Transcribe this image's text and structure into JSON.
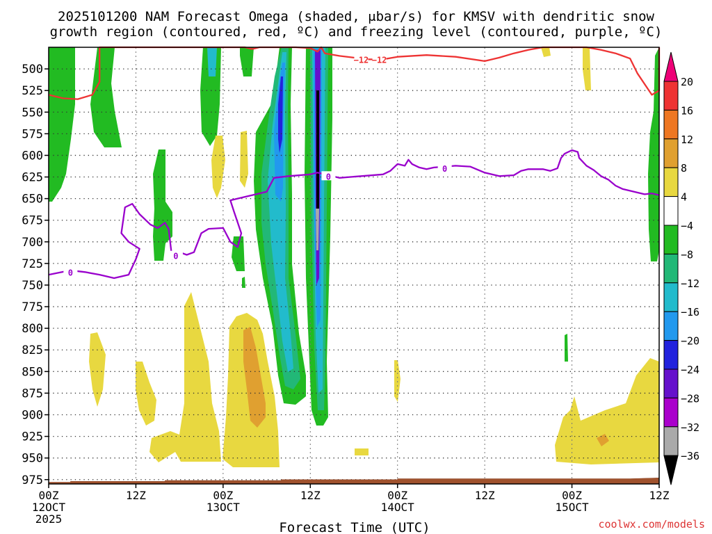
{
  "chart_data": {
    "type": "heatmap",
    "title_line1": "2025101200 NAM Forecast Omega (shaded, μbar/s) for KMSV with dendritic snow",
    "title_line2": "growth region (contoured, red, ºC) and freezing level (contoured, purple, ºC)",
    "xlabel": "Forecast Time (UTC)",
    "ylabel": "",
    "credit": "coolwx.com/models",
    "x_range_hours": [
      0,
      84
    ],
    "x_ticks": [
      {
        "hour": 0,
        "label": "00Z",
        "date": "12OCT",
        "year": "2025"
      },
      {
        "hour": 12,
        "label": "12Z",
        "date": "",
        "year": ""
      },
      {
        "hour": 24,
        "label": "00Z",
        "date": "13OCT",
        "year": ""
      },
      {
        "hour": 36,
        "label": "12Z",
        "date": "",
        "year": ""
      },
      {
        "hour": 48,
        "label": "00Z",
        "date": "14OCT",
        "year": ""
      },
      {
        "hour": 60,
        "label": "12Z",
        "date": "",
        "year": ""
      },
      {
        "hour": 72,
        "label": "00Z",
        "date": "15OCT",
        "year": ""
      },
      {
        "hour": 84,
        "label": "12Z",
        "date": "",
        "year": ""
      }
    ],
    "y_range_mb": [
      980,
      475
    ],
    "y_ticks": [
      "500",
      "525",
      "550",
      "575",
      "600",
      "625",
      "650",
      "675",
      "700",
      "725",
      "750",
      "775",
      "800",
      "825",
      "850",
      "875",
      "900",
      "925",
      "950",
      "975"
    ],
    "colorbar": {
      "labels": [
        "20",
        "16",
        "12",
        "8",
        "4",
        "−4",
        "−8",
        "−12",
        "−16",
        "−20",
        "−24",
        "−28",
        "−32",
        "−36"
      ],
      "bins": [
        {
          "low": 20,
          "high": 24,
          "color": "#ee0077"
        },
        {
          "low": 16,
          "high": 20,
          "color": "#ee3333"
        },
        {
          "low": 12,
          "high": 16,
          "color": "#ee7722"
        },
        {
          "low": 8,
          "high": 12,
          "color": "#e0a030"
        },
        {
          "low": 4,
          "high": 8,
          "color": "#e8d840"
        },
        {
          "low": -4,
          "high": 4,
          "color": "#ffffff"
        },
        {
          "low": -8,
          "high": -4,
          "color": "#22bb22"
        },
        {
          "low": -12,
          "high": -8,
          "color": "#22b877"
        },
        {
          "low": -16,
          "high": -12,
          "color": "#22bbcc"
        },
        {
          "low": -20,
          "high": -16,
          "color": "#2299ee"
        },
        {
          "low": -24,
          "high": -20,
          "color": "#2222dd"
        },
        {
          "low": -28,
          "high": -24,
          "color": "#6611cc"
        },
        {
          "low": -32,
          "high": -28,
          "color": "#aa00cc"
        },
        {
          "low": -36,
          "high": -32,
          "color": "#aaaaaa"
        },
        {
          "low": -40,
          "high": -36,
          "color": "#000000"
        }
      ]
    },
    "contours": [
      {
        "name": "dendritic snow growth region",
        "label": "−12",
        "units": "ºC",
        "color": "#ee3333",
        "points": [
          [
            0,
            530
          ],
          [
            2,
            534
          ],
          [
            4,
            535
          ],
          [
            6,
            530
          ],
          [
            7,
            515
          ],
          [
            7,
            490
          ],
          [
            7,
            475
          ],
          [
            27,
            475
          ],
          [
            28,
            477
          ],
          [
            29,
            475
          ],
          [
            34,
            475
          ],
          [
            36,
            476
          ],
          [
            37,
            480
          ],
          [
            37.5,
            475
          ],
          [
            38,
            482
          ],
          [
            40,
            485
          ],
          [
            42,
            487
          ],
          [
            44,
            489
          ],
          [
            46,
            489
          ],
          [
            48,
            486
          ],
          [
            52,
            484
          ],
          [
            56,
            486
          ],
          [
            60,
            491
          ],
          [
            62,
            487
          ],
          [
            64,
            482
          ],
          [
            66,
            478
          ],
          [
            68,
            475
          ],
          [
            74,
            475
          ],
          [
            76,
            478
          ],
          [
            78,
            482
          ],
          [
            80,
            488
          ],
          [
            81,
            505
          ],
          [
            83,
            530
          ],
          [
            84,
            525
          ],
          [
            84,
            475
          ]
        ]
      },
      {
        "name": "freezing level",
        "label": "0",
        "units": "ºC",
        "color": "#9900cc",
        "points": [
          [
            0,
            738
          ],
          [
            3,
            733
          ],
          [
            5,
            735
          ],
          [
            7,
            738
          ],
          [
            9,
            742
          ],
          [
            11,
            738
          ],
          [
            12,
            720
          ],
          [
            12.5,
            708
          ],
          [
            11,
            700
          ],
          [
            10,
            690
          ],
          [
            10.5,
            660
          ],
          [
            11.5,
            656
          ],
          [
            12.5,
            668
          ],
          [
            14,
            680
          ],
          [
            15,
            684
          ],
          [
            16,
            678
          ],
          [
            16.5,
            685
          ],
          [
            17,
            720
          ],
          [
            18,
            712
          ],
          [
            19,
            715
          ],
          [
            20,
            712
          ],
          [
            21,
            690
          ],
          [
            22,
            685
          ],
          [
            24,
            684
          ],
          [
            25,
            700
          ],
          [
            26,
            706
          ],
          [
            26.5,
            690
          ],
          [
            25.5,
            665
          ],
          [
            25,
            652
          ],
          [
            27,
            648
          ],
          [
            29,
            644
          ],
          [
            30,
            642
          ],
          [
            31,
            626
          ],
          [
            33,
            624
          ],
          [
            36,
            622
          ],
          [
            37,
            620
          ],
          [
            38,
            622
          ],
          [
            40,
            626
          ],
          [
            43,
            624
          ],
          [
            46,
            622
          ],
          [
            47,
            618
          ],
          [
            48,
            610
          ],
          [
            49,
            612
          ],
          [
            49.5,
            605
          ],
          [
            50,
            610
          ],
          [
            51,
            614
          ],
          [
            52,
            616
          ],
          [
            53,
            614
          ],
          [
            56,
            612
          ],
          [
            58,
            613
          ],
          [
            60,
            620
          ],
          [
            62,
            624
          ],
          [
            64,
            623
          ],
          [
            65,
            618
          ],
          [
            66,
            616
          ],
          [
            68,
            616
          ],
          [
            69,
            618
          ],
          [
            70,
            615
          ],
          [
            70.5,
            603
          ],
          [
            71,
            598
          ],
          [
            72,
            594
          ],
          [
            72.8,
            596
          ],
          [
            73,
            603
          ],
          [
            74,
            612
          ],
          [
            75,
            617
          ],
          [
            76,
            624
          ],
          [
            77,
            628
          ],
          [
            78,
            635
          ],
          [
            79,
            639
          ],
          [
            80,
            641
          ],
          [
            81,
            643
          ],
          [
            82,
            645
          ],
          [
            83,
            644
          ],
          [
            84,
            646
          ]
        ]
      }
    ],
    "omega_regions": [
      {
        "value_range": [
          -8,
          -4
        ],
        "color": "#22bb22",
        "description": "sinking, upper-left column"
      },
      {
        "value_range": [
          -8,
          -4
        ],
        "color": "#22bb22",
        "description": "sinking, hour 6-10 column 475-550 mb"
      },
      {
        "value_range": [
          -12,
          -8
        ],
        "color": "#22b877",
        "description": "sinking, hour 29-36 band 550-870 mb"
      },
      {
        "value_range": [
          -36,
          -16
        ],
        "color": "#2299ee",
        "description": "intense band near hour 37, 475-890 mb"
      },
      {
        "value_range": [
          -8,
          -4
        ],
        "color": "#22bb22",
        "description": "sinking, right edge hour 83-84"
      },
      {
        "value_range": [
          4,
          8
        ],
        "color": "#e8d840",
        "description": "rising, low levels hour 5-9, 14-16, 16-20"
      },
      {
        "value_range": [
          8,
          16
        ],
        "color": "#e0a030",
        "description": "rising, low levels hour 26-33 peak near 830 mb"
      },
      {
        "value_range": [
          4,
          12
        ],
        "color": "#e8d840",
        "description": "rising, low levels hour 70-84"
      }
    ],
    "terrain_surface_mb": [
      [
        0,
        978
      ],
      [
        3,
        978
      ],
      [
        3,
        977
      ],
      [
        16,
        977
      ],
      [
        16,
        976
      ],
      [
        32,
        976
      ],
      [
        32,
        975
      ],
      [
        48,
        975
      ],
      [
        48,
        974
      ],
      [
        80,
        974
      ],
      [
        84,
        973
      ]
    ]
  }
}
